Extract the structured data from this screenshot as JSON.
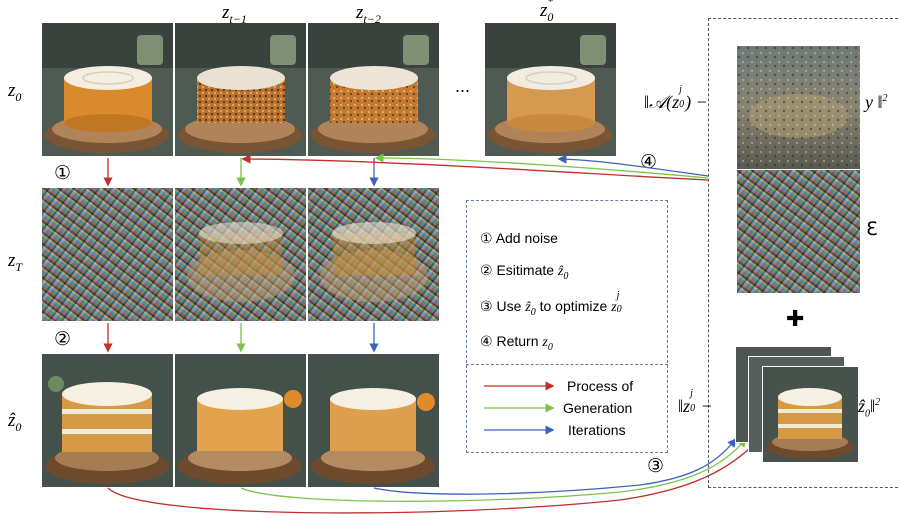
{
  "row_labels": {
    "z0": "z",
    "z0_sub": "0",
    "zT": "z",
    "zT_sub": "T",
    "zhat": "ẑ",
    "zhat_sub": "0"
  },
  "col_labels": {
    "c1": "z",
    "c1_sub": "t−1",
    "c2": "z",
    "c2_sub": "t−2",
    "c3": "z",
    "c3_sup": "*",
    "c3_sub": "0"
  },
  "ellipsis": "...",
  "steps": {
    "s1": "①",
    "s2": "②",
    "s3": "③",
    "s4": "④"
  },
  "legend": {
    "items": [
      {
        "num": "①",
        "text": "Add noise"
      },
      {
        "num": "②",
        "text": "Esitimate ",
        "math": "ẑ",
        "math_sub": "0"
      },
      {
        "num": "③",
        "text": "Use ",
        "math": "ẑ",
        "math_sub": "0",
        "text2": " to optimize ",
        "math2": "z",
        "math2_sub": "0",
        "math2_sup": "j"
      },
      {
        "num": "④",
        "text": "Return ",
        "math": "z",
        "math_sub": "0"
      }
    ],
    "arrows": [
      {
        "label": "Process of",
        "color": "#c0312b"
      },
      {
        "label": "Generation",
        "color": "#7bc34a"
      },
      {
        "label": "Iterations",
        "color": "#3d63b8"
      }
    ]
  },
  "loss": {
    "term1_left": "‖𝒜(z",
    "term1_sub": "0",
    "term1_sup": "j",
    "term1_close": ") −",
    "term1_right": "y ‖",
    "term1_pow": "2",
    "epsilon": "Ɛ",
    "plus": "✚",
    "term2_left": "‖z",
    "term2_sub": "0",
    "term2_sup": "j",
    "term2_minus": " −",
    "term2_right": "ẑ",
    "term2_rsub": "0",
    "term2_close": "‖",
    "term2_pow": "2"
  },
  "colors": {
    "red": "#c0312b",
    "green": "#7bc34a",
    "blue": "#3d63b8",
    "frame": "#6b7e99"
  }
}
